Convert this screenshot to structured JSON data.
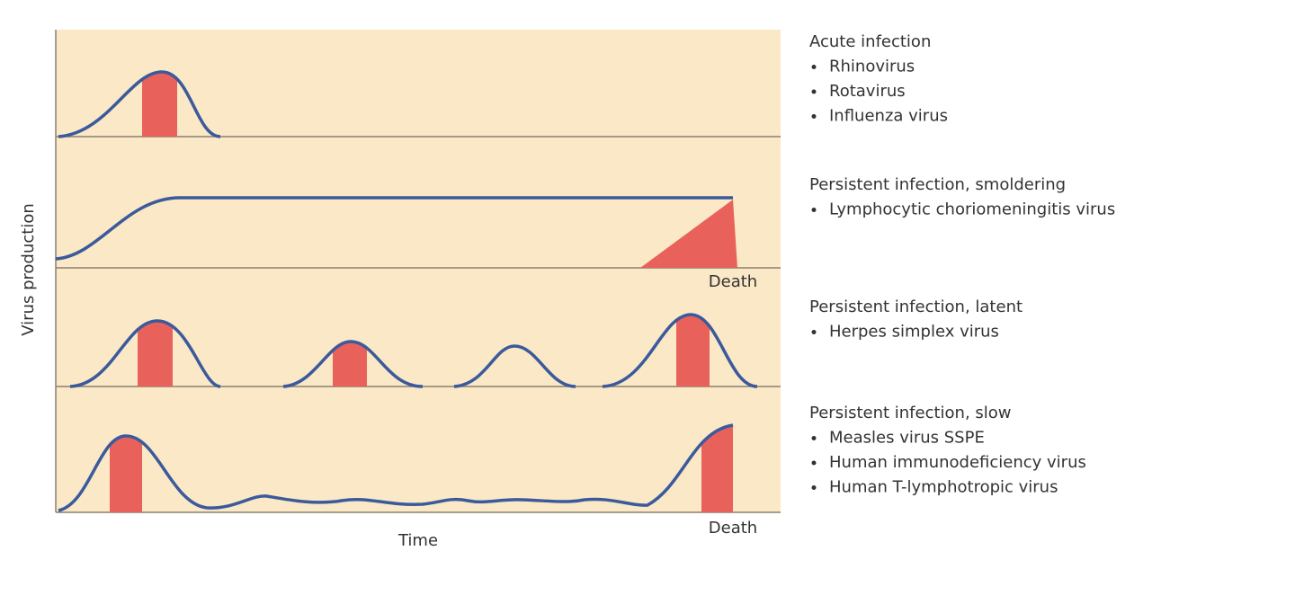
{
  "axis": {
    "y_label": "Virus production",
    "x_label": "Time"
  },
  "panels": [
    {
      "title": "Acute infection",
      "items": [
        "Rhinovirus",
        "Rotavirus",
        "Influenza virus"
      ]
    },
    {
      "title": "Persistent infection, smoldering",
      "items": [
        "Lymphocytic choriomeningitis virus"
      ],
      "end_label": "Death"
    },
    {
      "title": "Persistent infection, latent",
      "items": [
        "Herpes simplex virus"
      ]
    },
    {
      "title": "Persistent infection, slow",
      "items": [
        "Measles virus SSPE",
        "Human immunodeficiency virus",
        "Human T-lymphotropic virus"
      ],
      "end_label": "Death"
    }
  ]
}
